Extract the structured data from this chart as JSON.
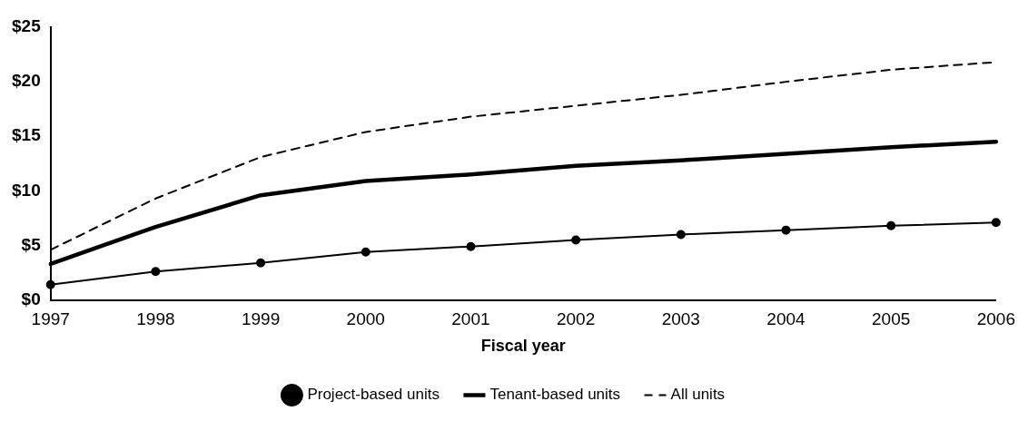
{
  "chart_data": {
    "type": "line",
    "xlabel": "Fiscal year",
    "categories": [
      "1997",
      "1998",
      "1999",
      "2000",
      "2001",
      "2002",
      "2003",
      "2004",
      "2005",
      "2006"
    ],
    "series": [
      {
        "name": "Project-based units",
        "color": "#000000",
        "marker": "circle",
        "line_style": "solid",
        "values": [
          1.4,
          2.6,
          3.4,
          4.4,
          4.9,
          5.5,
          6.0,
          6.4,
          6.8,
          7.1
        ]
      },
      {
        "name": "Tenant-based units",
        "color": "#000000",
        "marker": "none",
        "line_style": "solid",
        "values": [
          3.3,
          6.7,
          9.6,
          10.9,
          11.5,
          12.3,
          12.8,
          13.4,
          14.0,
          14.5
        ]
      },
      {
        "name": "All units",
        "color": "#000000",
        "marker": "none",
        "line_style": "dashed",
        "values": [
          4.6,
          9.3,
          13.1,
          15.4,
          16.8,
          17.8,
          18.8,
          20.0,
          21.1,
          21.8
        ]
      }
    ],
    "ylim": [
      0,
      25
    ],
    "yticks": [
      {
        "value": 0,
        "label": "$0"
      },
      {
        "value": 5,
        "label": "$5"
      },
      {
        "value": 10,
        "label": "$10"
      },
      {
        "value": 15,
        "label": "$15"
      },
      {
        "value": 20,
        "label": "$20"
      },
      {
        "value": 25,
        "label": "$25"
      }
    ],
    "grid": false,
    "legend": "bottom"
  }
}
